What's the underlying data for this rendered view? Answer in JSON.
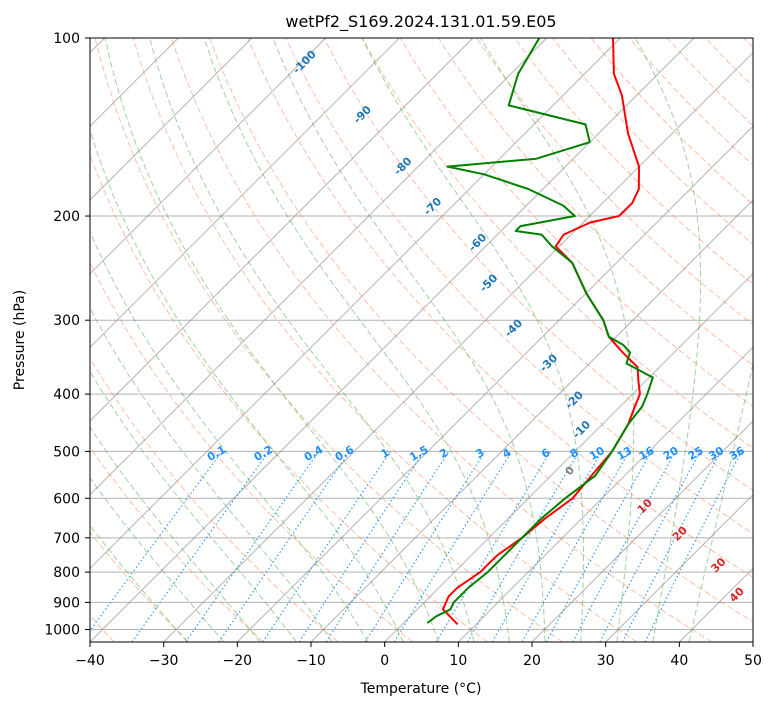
{
  "chart_data": {
    "type": "line",
    "title": "wetPf2_S169.2024.131.01.59.E05",
    "xlabel": "Temperature (°C)",
    "ylabel": "Pressure (hPa)",
    "xlim": [
      -40,
      50
    ],
    "ylim": [
      1050,
      100
    ],
    "y_scale": "log",
    "x_ticks": [
      "−40",
      "−30",
      "−20",
      "−10",
      "0",
      "10",
      "20",
      "30",
      "40",
      "50"
    ],
    "x_tick_values": [
      -40,
      -30,
      -20,
      -10,
      0,
      10,
      20,
      30,
      40,
      50
    ],
    "y_ticks": [
      "100",
      "200",
      "300",
      "400",
      "500",
      "600",
      "700",
      "800",
      "900",
      "1000"
    ],
    "y_tick_values": [
      100,
      200,
      300,
      400,
      500,
      600,
      700,
      800,
      900,
      1000
    ],
    "skew_degrees": 45,
    "grid": true,
    "colors": {
      "temperature": "#ff0000",
      "dewpoint": "#008000",
      "dry_adiabat": "#ff7f50",
      "moist_adiabat": "#2ca02c",
      "mixing_ratio": "#1e90ff",
      "wetbulb_label": "#1f77b4",
      "theta_e_label": "#d62728",
      "isotherm": "#808080"
    },
    "series": [
      {
        "key": "temperature",
        "color": "#ff0000",
        "points": [
          [
            7.5,
            980
          ],
          [
            3.5,
            925
          ],
          [
            2.5,
            880
          ],
          [
            2.5,
            850
          ],
          [
            3.5,
            800
          ],
          [
            3.5,
            750
          ],
          [
            4.5,
            700
          ],
          [
            5.0,
            650
          ],
          [
            6.0,
            600
          ],
          [
            5.5,
            550
          ],
          [
            5.0,
            500
          ],
          [
            3.5,
            450
          ],
          [
            2.0,
            420
          ],
          [
            1.0,
            400
          ],
          [
            -1.0,
            380
          ],
          [
            -3.0,
            360
          ],
          [
            -5.0,
            350
          ],
          [
            -7.0,
            340
          ],
          [
            -9.0,
            330
          ],
          [
            -11.0,
            320
          ],
          [
            -14.0,
            300
          ],
          [
            -20.0,
            270
          ],
          [
            -26.0,
            240
          ],
          [
            -30.5,
            225
          ],
          [
            -31.0,
            215
          ],
          [
            -29.0,
            205
          ],
          [
            -26.0,
            200
          ],
          [
            -26.0,
            190
          ],
          [
            -27.0,
            180
          ],
          [
            -30.0,
            165
          ],
          [
            -36.0,
            145
          ],
          [
            -42.0,
            125
          ],
          [
            -46.0,
            115
          ],
          [
            -51.0,
            100
          ]
        ]
      },
      {
        "key": "dewpoint",
        "color": "#008000",
        "points": [
          [
            3.2,
            975
          ],
          [
            3.5,
            950
          ],
          [
            4.5,
            925
          ],
          [
            4.0,
            900
          ],
          [
            4.0,
            850
          ],
          [
            4.5,
            800
          ],
          [
            4.5,
            750
          ],
          [
            4.5,
            700
          ],
          [
            4.5,
            650
          ],
          [
            5.0,
            600
          ],
          [
            6.0,
            550
          ],
          [
            5.0,
            500
          ],
          [
            3.5,
            450
          ],
          [
            3.0,
            420
          ],
          [
            2.0,
            400
          ],
          [
            0.5,
            375
          ],
          [
            -5.0,
            355
          ],
          [
            -6.0,
            340
          ],
          [
            -8.0,
            330
          ],
          [
            -11.0,
            320
          ],
          [
            -14.0,
            300
          ],
          [
            -20.0,
            270
          ],
          [
            -26.0,
            240
          ],
          [
            -31.0,
            225
          ],
          [
            -34.0,
            215
          ],
          [
            -38.0,
            212
          ],
          [
            -38.0,
            208
          ],
          [
            -32.0,
            200
          ],
          [
            -35.0,
            192
          ],
          [
            -42.0,
            180
          ],
          [
            -50.0,
            170
          ],
          [
            -56.0,
            165
          ],
          [
            -45.0,
            160
          ],
          [
            -40.0,
            150
          ],
          [
            -43.0,
            140
          ],
          [
            -56.0,
            130
          ],
          [
            -59.0,
            115
          ],
          [
            -61.0,
            100
          ]
        ]
      }
    ],
    "wetbulb_labels": [
      "-100",
      "-90",
      "-80",
      "-70",
      "-60",
      "-50",
      "-40",
      "-30",
      "-20",
      "-10"
    ],
    "wetbulb_positions": [
      {
        "t": -100,
        "x": -89.5,
        "p": 110
      },
      {
        "t": -90,
        "x": -74.5,
        "p": 135
      },
      {
        "t": -80,
        "x": -62.0,
        "p": 165
      },
      {
        "t": -70,
        "x": -52.5,
        "p": 193
      },
      {
        "t": -60,
        "x": -41.5,
        "p": 222
      },
      {
        "t": -50,
        "x": -34.5,
        "p": 260
      },
      {
        "t": -40,
        "x": -25.0,
        "p": 310
      },
      {
        "t": -30,
        "x": -15.5,
        "p": 355
      },
      {
        "t": -20,
        "x": -7.0,
        "p": 410
      },
      {
        "t": -10,
        "x": -2.0,
        "p": 460
      }
    ],
    "mixing_ratio_labels": [
      "0.1",
      "0.2",
      "0.4",
      "0.6",
      "1",
      "1.5",
      "2",
      "3",
      "4",
      "6",
      "8",
      "10",
      "13",
      "16",
      "20",
      "25",
      "30",
      "36"
    ],
    "mixing_ratio_values": [
      0.1,
      0.2,
      0.4,
      0.6,
      1,
      1.5,
      2,
      3,
      4,
      6,
      8,
      10,
      13,
      16,
      20,
      25,
      30,
      36
    ],
    "theta_e_labels": [
      "0",
      "10",
      "20",
      "30",
      "40"
    ],
    "theta_e_positions": [
      {
        "t": 0,
        "x": 2.0,
        "p": 540
      },
      {
        "t": 10,
        "x": 17.0,
        "p": 620
      },
      {
        "t": 20,
        "x": 25.5,
        "p": 690
      },
      {
        "t": 30,
        "x": 35.0,
        "p": 780
      },
      {
        "t": 40,
        "x": 41.5,
        "p": 875
      }
    ]
  }
}
